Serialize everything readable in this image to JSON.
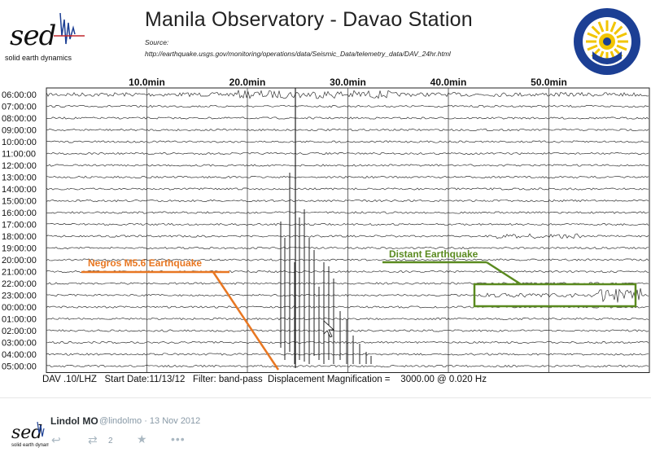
{
  "header": {
    "title": "Manila Observatory - Davao Station",
    "source_label": "Source:",
    "source_url": "http://earthquake.usgs.gov/monitoring/operations/data/Seismic_Data/telemetry_data/DAV_24hr.html"
  },
  "logos": {
    "sed_word": "sed",
    "sed_tagline": "solid earth dynamics",
    "seal_text": "MANILA OBSERVATORY"
  },
  "seismogram": {
    "minute_labels": [
      "10.0min",
      "20.0min",
      "30.0min",
      "40.0min",
      "50.0min"
    ],
    "hour_labels": [
      "06:00:00",
      "07:00:00",
      "08:00:00",
      "09:00:00",
      "10:00:00",
      "11:00:00",
      "12:00:00",
      "13:00:00",
      "14:00:00",
      "15:00:00",
      "16:00:00",
      "17:00:00",
      "18:00:00",
      "19:00:00",
      "20:00:00",
      "21:00:00",
      "22:00:00",
      "23:00:00",
      "00:00:00",
      "01:00:00",
      "02:00:00",
      "03:00:00",
      "04:00:00",
      "05:00:00"
    ],
    "annotations": [
      {
        "text": "Negros M5.6 Earthquake",
        "color": "#e87722"
      },
      {
        "text": "Distant Earthquake",
        "color": "#5a8a1f"
      }
    ],
    "info": "DAV .10/LHZ   Start Date:11/13/12   Filter: band-pass  Displacement Magnification =    3000.00 @ 0.020 Hz"
  },
  "tweet": {
    "name": "Lindol MO",
    "handle_date": "@lindolmo · 13 Nov 2012",
    "retweet_count": "2",
    "icons": [
      "reply-icon",
      "retweet-icon",
      "favorite-icon",
      "more-icon"
    ]
  }
}
